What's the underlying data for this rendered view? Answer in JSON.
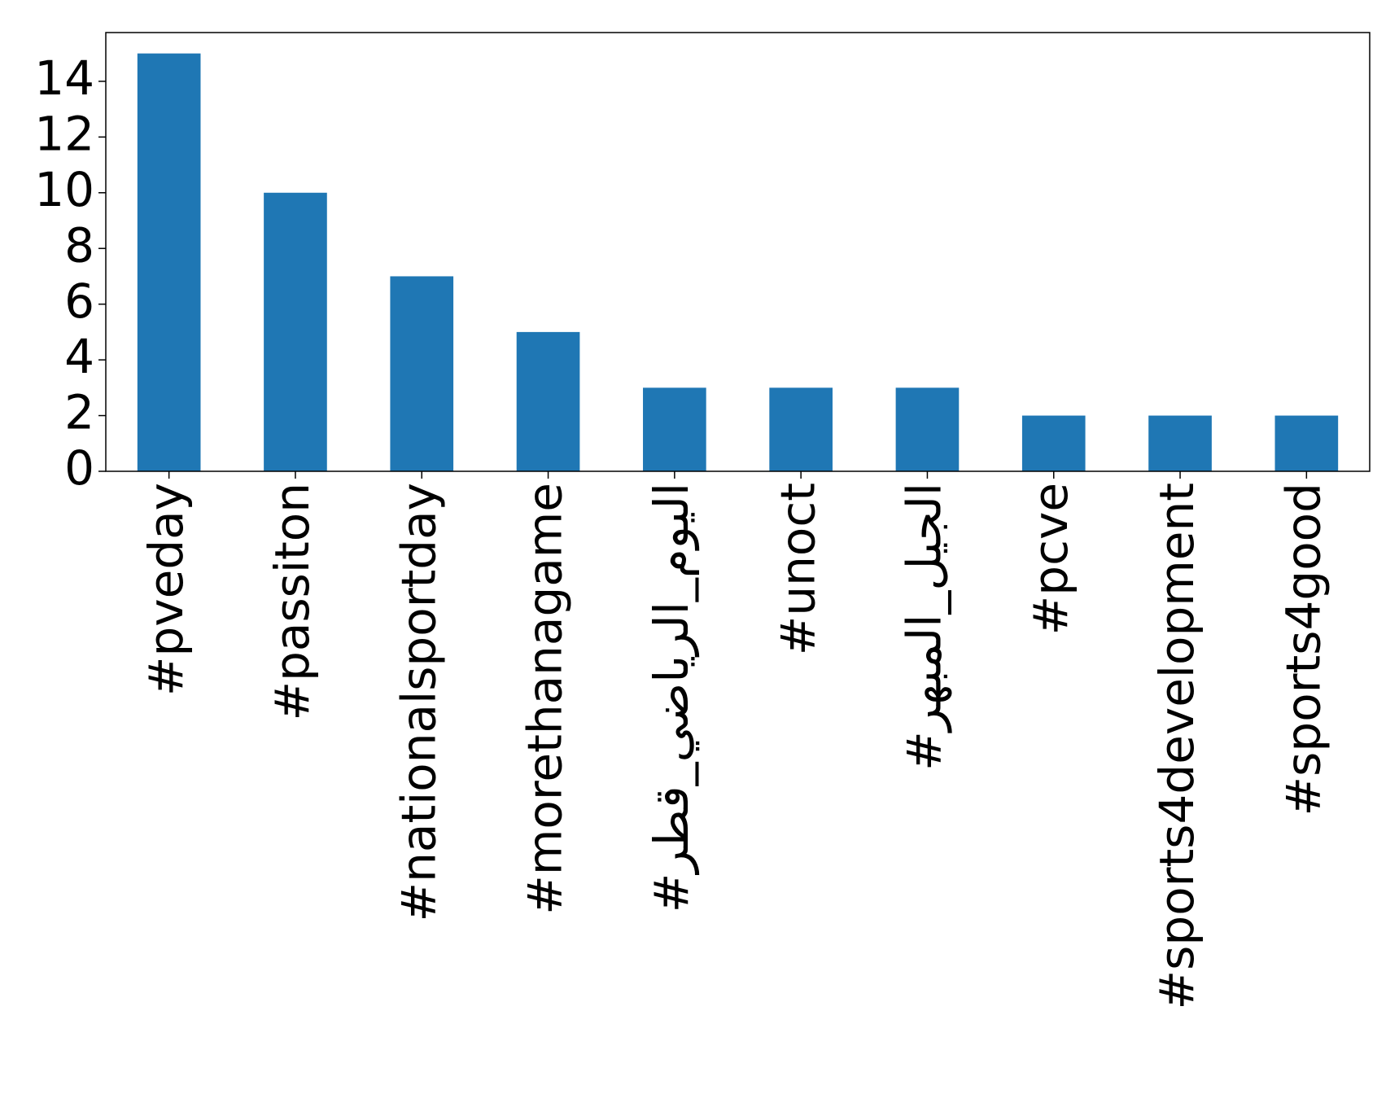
{
  "chart_data": {
    "type": "bar",
    "categories": [
      "#pveday",
      "#passiton",
      "#nationalsportday",
      "#morethanagame",
      "#اليوم_الرياضي_قطر",
      "#unoct",
      "#الجيل_المبهر",
      "#pcve",
      "#sports4development",
      "#sports4good"
    ],
    "values": [
      15,
      10,
      7,
      5,
      3,
      3,
      3,
      2,
      2,
      2
    ],
    "color": "#1f77b4",
    "ylim": [
      0,
      15.75
    ],
    "yticks": [
      0,
      2,
      4,
      6,
      8,
      10,
      12,
      14
    ],
    "grid": false
  }
}
